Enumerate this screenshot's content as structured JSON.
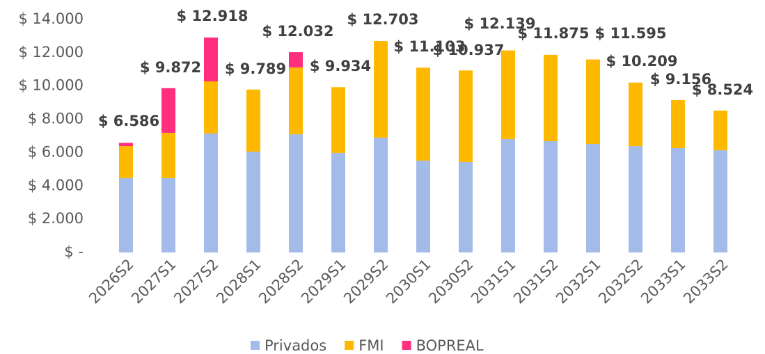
{
  "chart_data": {
    "type": "stacked-bar",
    "categories": [
      "2026S2",
      "2027S1",
      "2027S2",
      "2028S1",
      "2028S2",
      "2029S1",
      "2029S2",
      "2030S1",
      "2030S2",
      "2031S1",
      "2031S2",
      "2032S1",
      "2032S2",
      "2033S1",
      "2033S2"
    ],
    "series": [
      {
        "name": "Privados",
        "color": "#a3bbe8",
        "values": [
          4470,
          4470,
          7150,
          6060,
          7100,
          5980,
          6900,
          5520,
          5430,
          6810,
          6690,
          6520,
          6390,
          6270,
          6140
        ]
      },
      {
        "name": "FMI",
        "color": "#ffb800",
        "values": [
          1920,
          2720,
          3130,
          3729,
          4020,
          3954,
          5803,
          5583,
          5507,
          5329,
          5185,
          5075,
          3819,
          2886,
          2384
        ]
      },
      {
        "name": "BOPREAL",
        "color": "#ff2e7e",
        "values": [
          196,
          2682,
          2638,
          null,
          912,
          null,
          null,
          null,
          null,
          null,
          null,
          null,
          null,
          null,
          null
        ]
      }
    ],
    "totals": [
      {
        "value": 6586,
        "label": "$ 6.586"
      },
      {
        "value": 9872,
        "label": "$ 9.872"
      },
      {
        "value": 12918,
        "label": "$ 12.918"
      },
      {
        "value": 9789,
        "label": "$ 9.789"
      },
      {
        "value": 12032,
        "label": "$ 12.032"
      },
      {
        "value": 9934,
        "label": "$ 9.934"
      },
      {
        "value": 12703,
        "label": "$ 12.703"
      },
      {
        "value": 11103,
        "label": "$ 11.103"
      },
      {
        "value": 10937,
        "label": "$ 10.937"
      },
      {
        "value": 12139,
        "label": "$ 12.139"
      },
      {
        "value": 11875,
        "label": "$ 11.875"
      },
      {
        "value": 11595,
        "label": "$ 11.595"
      },
      {
        "value": 10209,
        "label": "$ 10.209"
      },
      {
        "value": 9156,
        "label": "$ 9.156"
      },
      {
        "value": 8524,
        "label": "$ 8.524"
      }
    ],
    "ylim": [
      0,
      14000
    ],
    "yticks": [
      {
        "value": 0,
        "label": "$ -"
      },
      {
        "value": 2000,
        "label": "$ 2.000"
      },
      {
        "value": 4000,
        "label": "$ 4.000"
      },
      {
        "value": 6000,
        "label": "$ 6.000"
      },
      {
        "value": 8000,
        "label": "$ 8.000"
      },
      {
        "value": 10000,
        "label": "$ 10.000"
      },
      {
        "value": 12000,
        "label": "$ 12.000"
      },
      {
        "value": 14000,
        "label": "$ 14.000"
      }
    ],
    "legend": "bottom"
  }
}
